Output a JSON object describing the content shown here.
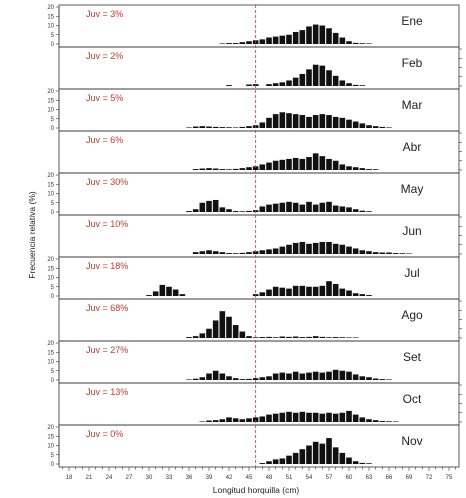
{
  "chart_data": {
    "type": "bar",
    "xlabel": "Longitud horquilla (cm)",
    "ylabel": "Frecuencia relativa (%)",
    "x_ticks": [
      18,
      21,
      24,
      27,
      30,
      33,
      36,
      39,
      42,
      45,
      48,
      51,
      54,
      57,
      60,
      63,
      66,
      69,
      72,
      75
    ],
    "y_ticks": [
      0,
      5,
      10,
      15,
      20
    ],
    "xlim": [
      16.5,
      76.5
    ],
    "ylim": [
      0,
      20
    ],
    "reference_line_x": 46,
    "x": [
      30,
      31,
      32,
      33,
      34,
      35,
      36,
      37,
      38,
      39,
      40,
      41,
      42,
      43,
      44,
      45,
      46,
      47,
      48,
      49,
      50,
      51,
      52,
      53,
      54,
      55,
      56,
      57,
      58,
      59,
      60,
      61,
      62,
      63,
      64,
      65,
      66,
      67,
      68,
      69
    ],
    "panels": [
      {
        "month": "Ene",
        "juv": "Juv = 3%",
        "values": [
          0,
          0,
          0,
          0,
          0,
          0,
          0,
          0,
          0,
          0,
          0,
          0.3,
          0.5,
          0.5,
          1,
          1.5,
          2,
          2.5,
          3.5,
          4,
          4.5,
          5,
          6.5,
          7.5,
          9.5,
          10.5,
          10,
          8.5,
          6,
          3.5,
          1.5,
          0.6,
          0.4,
          0.3,
          0,
          0,
          0,
          0,
          0,
          0
        ]
      },
      {
        "month": "Feb",
        "juv": "Juv = 2%",
        "values": [
          0,
          0,
          0,
          0,
          0,
          0,
          0,
          0,
          0,
          0,
          0,
          0,
          0.5,
          0,
          0,
          0.8,
          1,
          0,
          1,
          1.5,
          2,
          3,
          4.5,
          6.5,
          9,
          11.5,
          11,
          8.5,
          5.5,
          3,
          1.5,
          0.6,
          0.4,
          0,
          0,
          0,
          0,
          0,
          0,
          0
        ]
      },
      {
        "month": "Mar",
        "juv": "Juv = 5%",
        "values": [
          0,
          0,
          0,
          0,
          0,
          0,
          0.3,
          0.8,
          1,
          0.8,
          0.6,
          0.5,
          0.4,
          0.3,
          0.6,
          1,
          1.5,
          3,
          5.5,
          7.5,
          8.5,
          8,
          7.5,
          7,
          6,
          7,
          7.5,
          7,
          6,
          5.5,
          4.5,
          3.5,
          2.5,
          1.5,
          1,
          0.6,
          0.3,
          0,
          0,
          0
        ]
      },
      {
        "month": "Abr",
        "juv": "Juv = 6%",
        "values": [
          0,
          0,
          0,
          0,
          0,
          0,
          0,
          0.5,
          0.8,
          1,
          0.8,
          0.5,
          0.4,
          0.6,
          1,
          1.5,
          2,
          3,
          4,
          5,
          5.5,
          6,
          6.5,
          6,
          7,
          9,
          7.5,
          6,
          5,
          3,
          2,
          1.5,
          1,
          0.5,
          0.4,
          0,
          0,
          0,
          0,
          0
        ]
      },
      {
        "month": "May",
        "juv": "Juv = 30%",
        "values": [
          0,
          0,
          0,
          0,
          0,
          0,
          0.5,
          1.5,
          5,
          6,
          6.5,
          2.5,
          1.5,
          0.5,
          0.4,
          0.6,
          1,
          3,
          4,
          4.5,
          5,
          5.5,
          5,
          4,
          5.5,
          4,
          5,
          5.5,
          3.5,
          3,
          2.5,
          1.5,
          0.7,
          0.4,
          0,
          0,
          0,
          0,
          0,
          0
        ]
      },
      {
        "month": "Jun",
        "juv": "Juv = 10%",
        "values": [
          0,
          0,
          0,
          0,
          0,
          0,
          0,
          1,
          1.5,
          2,
          1.5,
          1,
          0.5,
          0.4,
          0.6,
          1,
          1.5,
          2,
          2.5,
          3,
          4,
          5,
          6,
          6.5,
          5.5,
          6,
          6.5,
          6.5,
          5.5,
          5,
          4,
          3,
          2,
          1.5,
          1,
          0.8,
          0.8,
          0.5,
          0.4,
          0.3
        ]
      },
      {
        "month": "Jul",
        "juv": "Juv = 18%",
        "values": [
          0.5,
          2.5,
          6,
          5,
          3.5,
          1,
          0,
          0,
          0,
          0,
          0,
          0,
          0,
          0,
          0,
          0,
          1,
          2,
          3.5,
          5,
          4.5,
          4,
          5.5,
          5.5,
          5,
          5,
          5.5,
          8,
          6.5,
          4,
          3,
          1.5,
          1,
          0.5,
          0,
          0,
          0,
          0,
          0,
          0
        ]
      },
      {
        "month": "Ago",
        "juv": "Juv = 68%",
        "values": [
          0,
          0,
          0,
          0,
          0,
          0,
          0.5,
          1,
          2.5,
          5,
          9.5,
          14.5,
          11.5,
          7,
          3.5,
          1,
          0.4,
          0.5,
          0.6,
          0.4,
          0.8,
          0.6,
          0.8,
          0.5,
          0.6,
          1,
          0.6,
          0.4,
          0.5,
          0.4,
          0.3,
          0.3,
          0,
          0,
          0,
          0,
          0,
          0,
          0,
          0
        ]
      },
      {
        "month": "Set",
        "juv": "Juv = 27%",
        "values": [
          0,
          0,
          0,
          0,
          0,
          0,
          0.3,
          0.7,
          1.5,
          3.5,
          5,
          3.5,
          2,
          1,
          0.5,
          0.6,
          1,
          1.5,
          2,
          3.5,
          4,
          3.5,
          4.5,
          3.5,
          4,
          4.5,
          4,
          4.5,
          5.5,
          5,
          4.5,
          3,
          2,
          1.5,
          0.8,
          0.5,
          0.3,
          0,
          0,
          0
        ]
      },
      {
        "month": "Oct",
        "juv": "Juv = 13%",
        "values": [
          0,
          0,
          0,
          0,
          0,
          0,
          0,
          0,
          0.3,
          0.8,
          1,
          1.5,
          2.5,
          2,
          1.5,
          2,
          2.5,
          3,
          4,
          4.5,
          5,
          5.5,
          5,
          5.5,
          5,
          5,
          4.5,
          5,
          4.5,
          5,
          6,
          4,
          2.5,
          1.5,
          1,
          0.5,
          0.4,
          0.3,
          0,
          0
        ]
      },
      {
        "month": "Nov",
        "juv": "Juv = 0%",
        "values": [
          0,
          0,
          0,
          0,
          0,
          0,
          0,
          0,
          0,
          0,
          0,
          0,
          0,
          0,
          0,
          0,
          0,
          0.5,
          1.5,
          2.5,
          3,
          4.5,
          6,
          8,
          10,
          12,
          11,
          14,
          9,
          6,
          3.5,
          1.5,
          0.6,
          0.4,
          0,
          0,
          0,
          0,
          0,
          0
        ]
      }
    ]
  }
}
